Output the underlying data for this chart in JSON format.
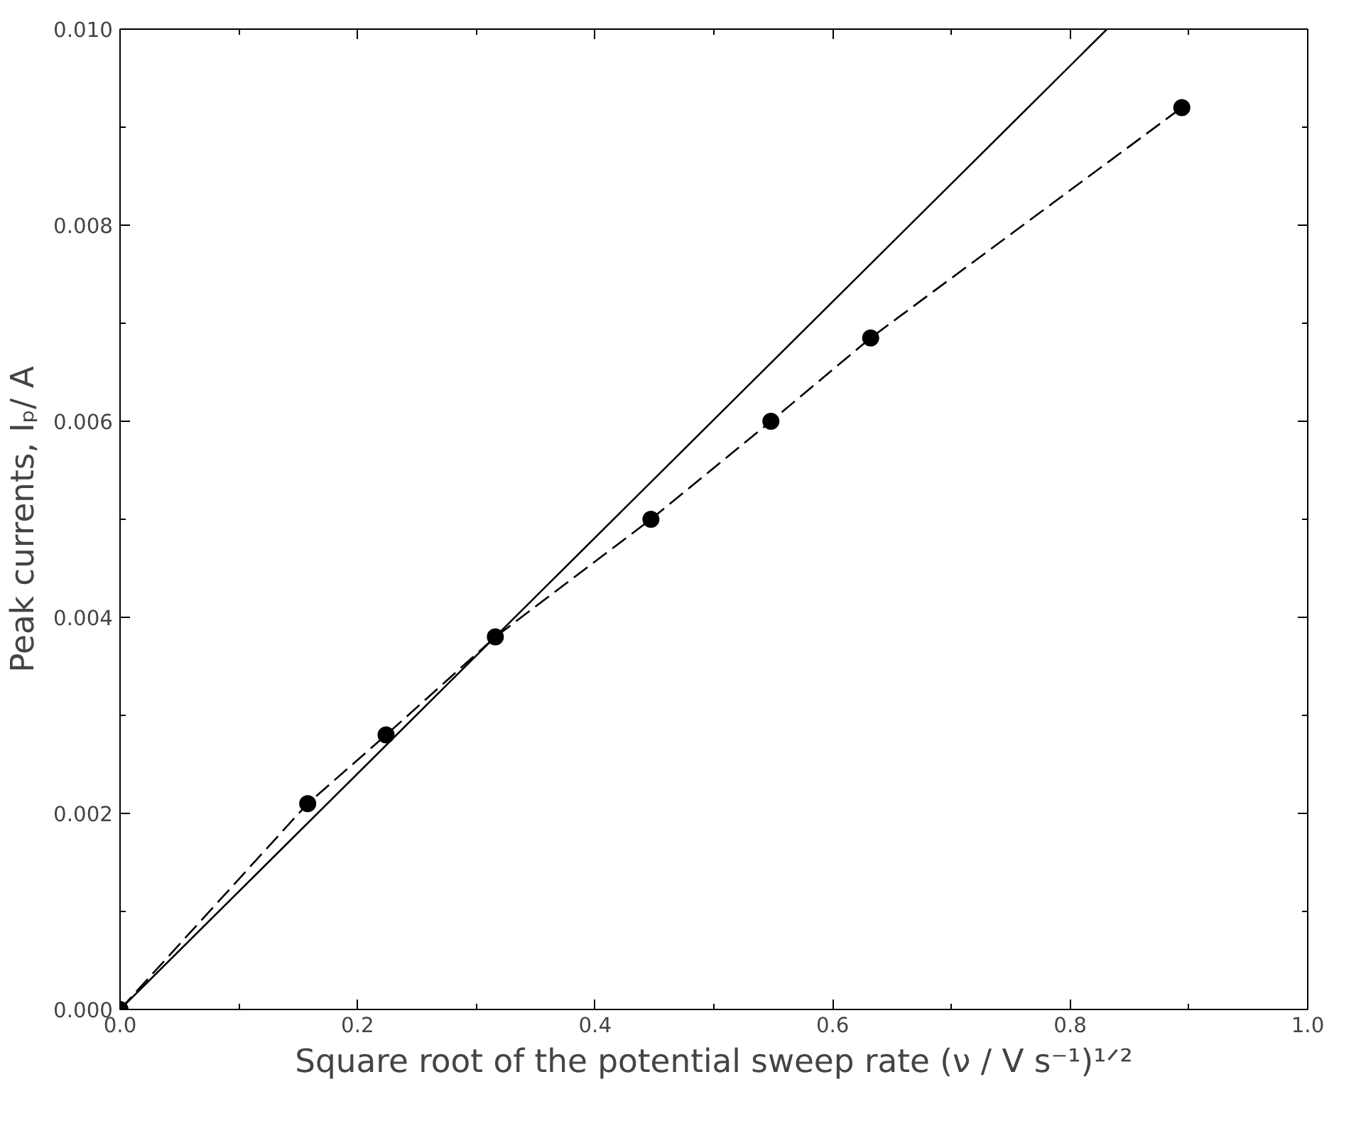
{
  "chart_data": {
    "type": "scatter",
    "xlabel": "Square root of the potential sweep rate (ν / V s⁻¹)¹ᐟ²",
    "ylabel": "Peak currents, Iₚ/ A",
    "xlim": [
      0,
      1.0
    ],
    "ylim": [
      0,
      0.01
    ],
    "xticks": [
      {
        "value": 0,
        "label": "0.0"
      },
      {
        "value": 0.2,
        "label": "0.2"
      },
      {
        "value": 0.4,
        "label": "0.4"
      },
      {
        "value": 0.6,
        "label": "0.6"
      },
      {
        "value": 0.8,
        "label": "0.8"
      },
      {
        "value": 1.0,
        "label": "1.0"
      }
    ],
    "yticks": [
      {
        "value": 0,
        "label": "0.000"
      },
      {
        "value": 0.002,
        "label": "0.002"
      },
      {
        "value": 0.004,
        "label": "0.004"
      },
      {
        "value": 0.006,
        "label": "0.006"
      },
      {
        "value": 0.008,
        "label": "0.008"
      },
      {
        "value": 0.01,
        "label": "0.010"
      }
    ],
    "grid": false,
    "series": [
      {
        "type": "line",
        "line_style": "solid",
        "marker": "none",
        "color": "#000000",
        "x": [
          0,
          0.831
        ],
        "values": [
          0,
          0.01
        ]
      },
      {
        "type": "line",
        "line_style": "dashed",
        "marker": "none",
        "color": "#000000",
        "x": [
          0,
          0.158,
          0.224,
          0.316,
          0.447,
          0.548,
          0.632,
          0.894
        ],
        "values": [
          0,
          0.0021,
          0.0028,
          0.0038,
          0.005,
          0.006,
          0.00685,
          0.0092
        ]
      },
      {
        "marker": "circle",
        "color": "#000000",
        "x": [
          0,
          0.158,
          0.224,
          0.316,
          0.447,
          0.548,
          0.632,
          0.894
        ],
        "values": [
          0,
          0.0021,
          0.0028,
          0.0038,
          0.005,
          0.006,
          0.00685,
          0.0092
        ]
      }
    ]
  }
}
